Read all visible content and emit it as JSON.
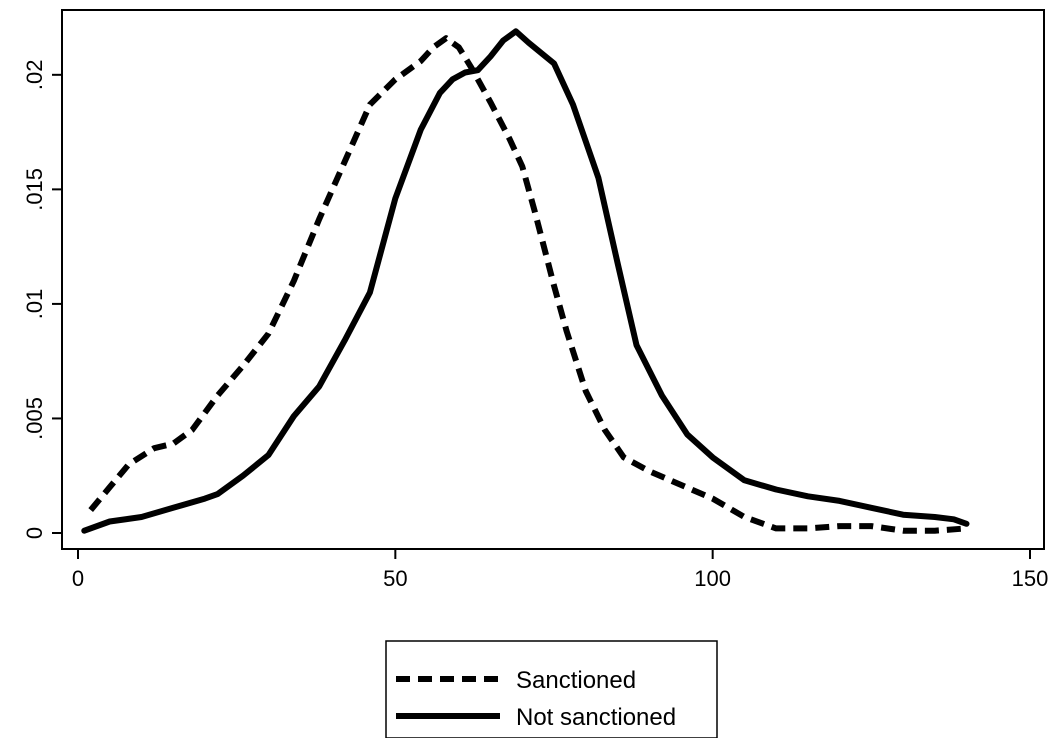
{
  "chart_data": {
    "type": "line",
    "title": "",
    "xlabel": "",
    "ylabel": "",
    "xlim": [
      0,
      150
    ],
    "ylim": [
      0,
      0.022
    ],
    "x_ticks": [
      0,
      50,
      100,
      150
    ],
    "x_tick_labels": [
      "0",
      "50",
      "100",
      "150"
    ],
    "y_ticks": [
      0,
      0.005,
      0.01,
      0.015,
      0.02
    ],
    "y_tick_labels": [
      "0",
      ".005",
      ".01",
      ".015",
      ".02"
    ],
    "grid": false,
    "legend_position": "bottom-center",
    "series": [
      {
        "name": "Sanctioned",
        "style": "dashed",
        "color": "#000000",
        "x": [
          2,
          5,
          8,
          12,
          15,
          18,
          22,
          26,
          30,
          34,
          38,
          42,
          46,
          50,
          54,
          56,
          58,
          60,
          62,
          65,
          68,
          70,
          72,
          75,
          77,
          80,
          83,
          86,
          90,
          95,
          100,
          105,
          110,
          115,
          120,
          125,
          130,
          135,
          140
        ],
        "y": [
          0.001,
          0.002,
          0.003,
          0.0037,
          0.0039,
          0.0045,
          0.006,
          0.0073,
          0.0087,
          0.011,
          0.0137,
          0.0162,
          0.0187,
          0.0198,
          0.0206,
          0.0212,
          0.0216,
          0.0212,
          0.0203,
          0.0188,
          0.0172,
          0.016,
          0.014,
          0.0108,
          0.0088,
          0.0062,
          0.0045,
          0.0033,
          0.0027,
          0.0021,
          0.0015,
          0.0007,
          0.0002,
          0.0002,
          0.0003,
          0.0003,
          0.0001,
          0.0001,
          0.0002
        ]
      },
      {
        "name": "Not sanctioned",
        "style": "solid",
        "color": "#000000",
        "x": [
          1,
          5,
          10,
          15,
          20,
          22,
          26,
          30,
          34,
          38,
          42,
          46,
          50,
          54,
          57,
          59,
          61,
          63,
          65,
          67,
          69,
          71,
          75,
          78,
          82,
          85,
          88,
          92,
          96,
          100,
          105,
          110,
          115,
          120,
          125,
          130,
          135,
          138,
          140
        ],
        "y": [
          0.0001,
          0.0005,
          0.0007,
          0.0011,
          0.0015,
          0.0017,
          0.0025,
          0.0034,
          0.0051,
          0.0064,
          0.0084,
          0.0105,
          0.0146,
          0.0176,
          0.0192,
          0.0198,
          0.0201,
          0.0202,
          0.0208,
          0.0215,
          0.0219,
          0.0214,
          0.0205,
          0.0187,
          0.0155,
          0.0118,
          0.0082,
          0.006,
          0.0043,
          0.0033,
          0.0023,
          0.0019,
          0.0016,
          0.0014,
          0.0011,
          0.0008,
          0.0007,
          0.0006,
          0.0004
        ]
      }
    ]
  }
}
